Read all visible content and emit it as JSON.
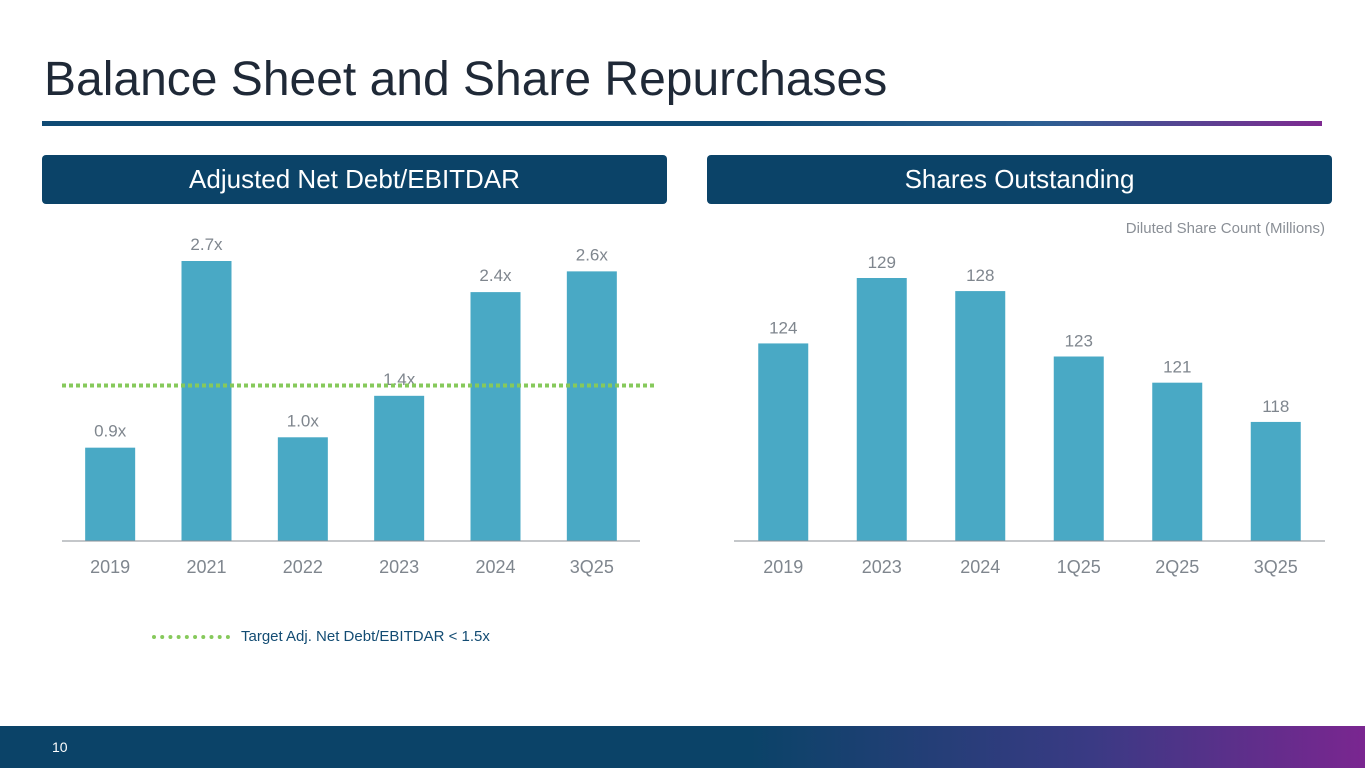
{
  "page": {
    "title": "Balance Sheet and Share Repurchases",
    "page_number": "10"
  },
  "colors": {
    "bar": "#49a9c5",
    "header_bg": "#0b4368",
    "target_line": "#86c95b",
    "axis": "#8a8f96",
    "label": "#7f868e"
  },
  "chart_data": [
    {
      "type": "bar",
      "title": "Adjusted Net Debt/EBITDAR",
      "categories": [
        "2019",
        "2021",
        "2022",
        "2023",
        "2024",
        "3Q25"
      ],
      "values": [
        0.9,
        2.7,
        1.0,
        1.4,
        2.4,
        2.6
      ],
      "data_labels": [
        "0.9x",
        "2.7x",
        "1.0x",
        "1.4x",
        "2.4x",
        "2.6x"
      ],
      "ylim": [
        0,
        2.7
      ],
      "target_line": {
        "value": 1.5,
        "label": "Target Adj. Net Debt/EBITDAR < 1.5x"
      },
      "xlabel": "",
      "ylabel": "",
      "grid": false,
      "legend_position": "bottom-left"
    },
    {
      "type": "bar",
      "title": "Shares Outstanding",
      "subtitle": "Diluted Share Count (Millions)",
      "categories": [
        "2019",
        "2023",
        "2024",
        "1Q25",
        "2Q25",
        "3Q25"
      ],
      "values": [
        124,
        129,
        128,
        123,
        121,
        118
      ],
      "data_labels": [
        "124",
        "129",
        "128",
        "123",
        "121",
        "118"
      ],
      "ylim": [
        108.9,
        129
      ],
      "xlabel": "",
      "ylabel": "",
      "grid": false
    }
  ]
}
